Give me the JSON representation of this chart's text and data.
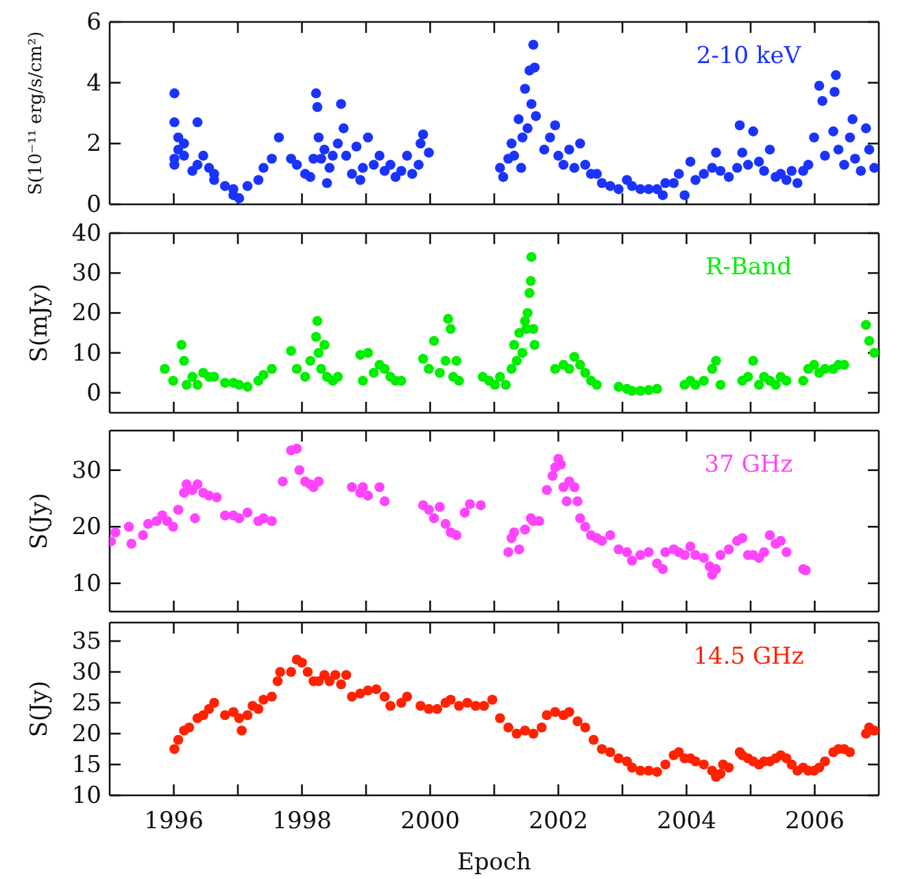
{
  "chart_data": [
    {
      "type": "scatter",
      "ylabel": "S(10⁻¹¹ erg/s/cm²)",
      "xlim": [
        1995,
        2007
      ],
      "ylim": [
        0,
        6
      ],
      "yticks": [
        0,
        2,
        4,
        6
      ],
      "xticks": [
        {
          "value": 1996,
          "label": null
        },
        {
          "value": 1997,
          "label": null
        },
        {
          "value": 1998,
          "label": null
        },
        {
          "value": 1999,
          "label": null
        },
        {
          "value": 2000,
          "label": null
        },
        {
          "value": 2001,
          "label": null
        },
        {
          "value": 2002,
          "label": null
        },
        {
          "value": 2003,
          "label": null
        },
        {
          "value": 2004,
          "label": null
        },
        {
          "value": 2005,
          "label": null
        },
        {
          "value": 2006,
          "label": null
        }
      ],
      "tick_labels": "y",
      "legend": "top right",
      "marker": "circle",
      "series": [
        {
          "name": "2-10 keV",
          "color": "#1a33ff",
          "x": [
            1996.01,
            1996.01,
            1996.01,
            1996.01,
            1996.07,
            1996.07,
            1996.16,
            1996.16,
            1996.29,
            1996.37,
            1996.37,
            1996.46,
            1996.55,
            1996.63,
            1996.63,
            1996.8,
            1996.93,
            1996.93,
            1997.02,
            1997.15,
            1997.32,
            1997.4,
            1997.53,
            1997.64,
            1997.83,
            1997.92,
            1998.05,
            1998.13,
            1998.18,
            1998.22,
            1998.24,
            1998.26,
            1998.3,
            1998.35,
            1998.39,
            1998.43,
            1998.48,
            1998.56,
            1998.61,
            1998.65,
            1998.69,
            1998.78,
            1998.85,
            1998.91,
            1998.95,
            1999.03,
            1999.12,
            1999.21,
            1999.29,
            1999.38,
            1999.46,
            1999.55,
            1999.64,
            1999.72,
            1999.82,
            1999.85,
            1999.89,
            1999.98,
            2001.09,
            2001.14,
            2001.22,
            2001.27,
            2001.31,
            2001.38,
            2001.42,
            2001.44,
            2001.48,
            2001.52,
            2001.55,
            2001.58,
            2001.61,
            2001.63,
            2001.65,
            2001.78,
            2001.87,
            2001.95,
            2002.0,
            2002.08,
            2002.17,
            2002.25,
            2002.34,
            2002.42,
            2002.51,
            2002.6,
            2002.68,
            2002.81,
            2002.94,
            2003.07,
            2003.15,
            2003.28,
            2003.41,
            2003.54,
            2003.63,
            2003.67,
            2003.8,
            2003.88,
            2003.97,
            2004.06,
            2004.14,
            2004.27,
            2004.4,
            2004.46,
            2004.53,
            2004.66,
            2004.79,
            2004.83,
            2004.87,
            2004.96,
            2005.04,
            2005.13,
            2005.21,
            2005.3,
            2005.39,
            2005.47,
            2005.56,
            2005.64,
            2005.73,
            2005.82,
            2005.9,
            2005.99,
            2006.07,
            2006.12,
            2006.16,
            2006.29,
            2006.31,
            2006.33,
            2006.37,
            2006.46,
            2006.55,
            2006.59,
            2006.63,
            2006.72,
            2006.8,
            2006.85,
            2006.93
          ],
          "values": [
            1.3,
            1.5,
            3.65,
            2.7,
            2.2,
            1.8,
            1.6,
            2.0,
            1.1,
            2.7,
            1.3,
            1.6,
            1.2,
            1.0,
            0.8,
            0.6,
            0.5,
            0.3,
            0.2,
            0.6,
            0.8,
            1.2,
            1.5,
            2.2,
            1.5,
            1.3,
            1.0,
            0.9,
            1.5,
            3.65,
            3.2,
            2.2,
            1.5,
            1.8,
            0.7,
            1.2,
            1.6,
            2.0,
            3.3,
            2.5,
            1.6,
            1.0,
            1.9,
            0.8,
            1.2,
            2.2,
            1.3,
            1.6,
            1.1,
            1.3,
            0.9,
            1.1,
            1.6,
            1.0,
            1.3,
            2.0,
            2.3,
            1.7,
            1.2,
            0.9,
            1.5,
            2.0,
            1.6,
            2.8,
            1.2,
            2.2,
            3.8,
            2.5,
            4.4,
            3.3,
            5.25,
            4.5,
            2.9,
            1.8,
            2.2,
            2.6,
            1.6,
            1.3,
            1.8,
            1.2,
            2.0,
            1.3,
            1.0,
            1.0,
            0.7,
            0.6,
            0.5,
            0.8,
            0.6,
            0.5,
            0.5,
            0.5,
            0.3,
            0.7,
            0.7,
            1.0,
            0.3,
            1.4,
            0.8,
            1.0,
            1.2,
            1.7,
            1.1,
            0.9,
            1.2,
            2.6,
            1.7,
            1.3,
            2.4,
            1.4,
            1.1,
            1.8,
            0.9,
            1.0,
            0.8,
            1.1,
            0.7,
            1.1,
            1.3,
            2.2,
            3.9,
            3.4,
            1.6,
            2.4,
            3.7,
            4.25,
            1.8,
            1.3,
            2.2,
            2.8,
            1.5,
            1.1,
            2.5,
            1.8,
            1.2
          ]
        }
      ]
    },
    {
      "type": "scatter",
      "ylabel": "S(mJy)",
      "xlim": [
        1995,
        2007
      ],
      "ylim": [
        -5,
        40
      ],
      "yticks": [
        0,
        10,
        20,
        30,
        40
      ],
      "xticks": [
        {
          "value": 1996,
          "label": null
        },
        {
          "value": 1997,
          "label": null
        },
        {
          "value": 1998,
          "label": null
        },
        {
          "value": 1999,
          "label": null
        },
        {
          "value": 2000,
          "label": null
        },
        {
          "value": 2001,
          "label": null
        },
        {
          "value": 2002,
          "label": null
        },
        {
          "value": 2003,
          "label": null
        },
        {
          "value": 2004,
          "label": null
        },
        {
          "value": 2005,
          "label": null
        },
        {
          "value": 2006,
          "label": null
        }
      ],
      "tick_labels": "y",
      "legend": "top right",
      "marker": "circle",
      "series": [
        {
          "name": "R-Band",
          "color": "#00ee00",
          "x": [
            1995.86,
            1995.99,
            1996.12,
            1996.16,
            1996.2,
            1996.29,
            1996.37,
            1996.46,
            1996.55,
            1996.63,
            1996.8,
            1996.93,
            1997.02,
            1997.15,
            1997.32,
            1997.4,
            1997.53,
            1997.83,
            1997.92,
            1998.05,
            1998.13,
            1998.22,
            1998.24,
            1998.26,
            1998.3,
            1998.35,
            1998.39,
            1998.48,
            1998.56,
            1998.91,
            1998.95,
            1999.03,
            1999.12,
            1999.21,
            1999.29,
            1999.38,
            1999.46,
            1999.55,
            1999.89,
            1999.98,
            2000.06,
            2000.15,
            2000.24,
            2000.28,
            2000.32,
            2000.36,
            2000.41,
            2000.45,
            2000.82,
            2000.92,
            2001.01,
            2001.09,
            2001.18,
            2001.27,
            2001.31,
            2001.35,
            2001.39,
            2001.44,
            2001.48,
            2001.5,
            2001.52,
            2001.55,
            2001.57,
            2001.58,
            2001.61,
            2001.63,
            2001.95,
            2002.08,
            2002.17,
            2002.25,
            2002.34,
            2002.42,
            2002.51,
            2002.6,
            2002.94,
            2003.07,
            2003.15,
            2003.28,
            2003.41,
            2003.54,
            2003.97,
            2004.06,
            2004.14,
            2004.27,
            2004.4,
            2004.46,
            2004.53,
            2004.87,
            2004.96,
            2005.04,
            2005.13,
            2005.21,
            2005.3,
            2005.39,
            2005.47,
            2005.56,
            2005.82,
            2005.9,
            2005.99,
            2006.07,
            2006.16,
            2006.29,
            2006.37,
            2006.46,
            2006.8,
            2006.85,
            2006.93
          ],
          "values": [
            6,
            3,
            12,
            8,
            2,
            4,
            2,
            5,
            4,
            4,
            2.5,
            2.5,
            2,
            1.5,
            3,
            4.5,
            6,
            10.5,
            6,
            4,
            8,
            14,
            18,
            10,
            6,
            12,
            4,
            3,
            4,
            9.5,
            3,
            10,
            5,
            7,
            6,
            4,
            3,
            3,
            8.5,
            6,
            13,
            5,
            8,
            18.5,
            16,
            4,
            8,
            3,
            4,
            3,
            2,
            4,
            2,
            6,
            12,
            8,
            15,
            10,
            18,
            16,
            20,
            25,
            28,
            34,
            16,
            12,
            6,
            7,
            6,
            9,
            7,
            5,
            3,
            2,
            1.5,
            1,
            0.5,
            0.5,
            0.7,
            1,
            2,
            3,
            2,
            3,
            6,
            8,
            2,
            3,
            4,
            8,
            2,
            4,
            3,
            2,
            4,
            3,
            3,
            6,
            7,
            5,
            6,
            6,
            7,
            7,
            17,
            13,
            10
          ]
        }
      ]
    },
    {
      "type": "scatter",
      "ylabel": "S(Jy)",
      "xlim": [
        1995,
        2007
      ],
      "ylim": [
        5,
        37
      ],
      "yticks": [
        10,
        20,
        30
      ],
      "xticks": [
        {
          "value": 1996,
          "label": null
        },
        {
          "value": 1997,
          "label": null
        },
        {
          "value": 1998,
          "label": null
        },
        {
          "value": 1999,
          "label": null
        },
        {
          "value": 2000,
          "label": null
        },
        {
          "value": 2001,
          "label": null
        },
        {
          "value": 2002,
          "label": null
        },
        {
          "value": 2003,
          "label": null
        },
        {
          "value": 2004,
          "label": null
        },
        {
          "value": 2005,
          "label": null
        },
        {
          "value": 2006,
          "label": null
        }
      ],
      "tick_labels": "y",
      "legend": "top right",
      "marker": "circle",
      "series": [
        {
          "name": "37 GHz",
          "color": "#ff44ff",
          "x": [
            1995.02,
            1995.09,
            1995.3,
            1995.34,
            1995.52,
            1995.6,
            1995.73,
            1995.82,
            1995.9,
            1995.99,
            1996.07,
            1996.16,
            1996.2,
            1996.29,
            1996.33,
            1996.37,
            1996.46,
            1996.55,
            1996.67,
            1996.8,
            1996.93,
            1997.02,
            1997.15,
            1997.32,
            1997.4,
            1997.53,
            1997.7,
            1997.83,
            1997.92,
            1997.96,
            1998.05,
            1998.13,
            1998.18,
            1998.26,
            1998.78,
            1998.91,
            1998.95,
            1999.03,
            1999.21,
            1999.29,
            1999.89,
            1999.98,
            2000.06,
            2000.15,
            2000.24,
            2000.32,
            2000.41,
            2000.54,
            2000.62,
            2000.79,
            2001.22,
            2001.27,
            2001.31,
            2001.39,
            2001.48,
            2001.57,
            2001.61,
            2001.7,
            2001.82,
            2001.91,
            2001.95,
            2002.0,
            2002.04,
            2002.08,
            2002.13,
            2002.17,
            2002.25,
            2002.3,
            2002.34,
            2002.42,
            2002.51,
            2002.6,
            2002.68,
            2002.81,
            2002.94,
            2003.07,
            2003.15,
            2003.28,
            2003.41,
            2003.54,
            2003.63,
            2003.67,
            2003.8,
            2003.88,
            2003.97,
            2004.06,
            2004.14,
            2004.27,
            2004.36,
            2004.4,
            2004.46,
            2004.53,
            2004.66,
            2004.79,
            2004.87,
            2004.96,
            2005.04,
            2005.13,
            2005.21,
            2005.3,
            2005.39,
            2005.47,
            2005.56,
            2005.82,
            2005.86
          ],
          "values": [
            17.4,
            19,
            20,
            17,
            18.5,
            20.5,
            21,
            22,
            21,
            20,
            23,
            26,
            27.5,
            26.5,
            21.5,
            27.5,
            26,
            25.5,
            25.2,
            22,
            22,
            21.5,
            22.5,
            21,
            21.5,
            21,
            28,
            33.5,
            33.8,
            30,
            28,
            27.5,
            27,
            28,
            27,
            26,
            27,
            25.5,
            27,
            24.5,
            23.8,
            23,
            21.5,
            23.5,
            20.5,
            19,
            18.5,
            22.5,
            24,
            23.8,
            15.5,
            18,
            19,
            16,
            19.5,
            21.5,
            21,
            21,
            26.5,
            29,
            30.5,
            32,
            31,
            27,
            24.5,
            28,
            27,
            24.5,
            21.5,
            20,
            18.5,
            18,
            17.5,
            18.5,
            16,
            15.5,
            14,
            15,
            15.5,
            13.5,
            12.5,
            15.5,
            16,
            15.5,
            15,
            16.5,
            15,
            14.5,
            13,
            11.5,
            12.5,
            15,
            16,
            17.5,
            18,
            15,
            15,
            14.5,
            15.5,
            18.5,
            17,
            17.5,
            15.5,
            12.5,
            12.3
          ]
        }
      ]
    },
    {
      "type": "scatter",
      "ylabel": "S(Jy)",
      "xlabel": "Epoch",
      "xlim": [
        1995,
        2007
      ],
      "ylim": [
        10,
        38
      ],
      "yticks": [
        10,
        15,
        20,
        25,
        30,
        35
      ],
      "xticks": [
        {
          "value": 1996,
          "label": "1996"
        },
        {
          "value": 1997,
          "label": null
        },
        {
          "value": 1998,
          "label": "1998"
        },
        {
          "value": 1999,
          "label": null
        },
        {
          "value": 2000,
          "label": "2000"
        },
        {
          "value": 2001,
          "label": null
        },
        {
          "value": 2002,
          "label": "2002"
        },
        {
          "value": 2003,
          "label": null
        },
        {
          "value": 2004,
          "label": "2004"
        },
        {
          "value": 2005,
          "label": null
        },
        {
          "value": 2006,
          "label": "2006"
        }
      ],
      "legend": "top right",
      "marker": "circle",
      "series": [
        {
          "name": "14.5 GHz",
          "color": "#ff2200",
          "x": [
            1996.01,
            1996.07,
            1996.16,
            1996.24,
            1996.37,
            1996.46,
            1996.55,
            1996.63,
            1996.8,
            1996.93,
            1997.02,
            1997.06,
            1997.15,
            1997.23,
            1997.32,
            1997.4,
            1997.53,
            1997.62,
            1997.66,
            1997.83,
            1997.92,
            1998.0,
            1998.09,
            1998.18,
            1998.26,
            1998.35,
            1998.43,
            1998.52,
            1998.61,
            1998.69,
            1998.78,
            1998.91,
            1999.03,
            1999.16,
            1999.29,
            1999.38,
            1999.55,
            1999.64,
            1999.85,
            1999.98,
            2000.11,
            2000.24,
            2000.32,
            2000.45,
            2000.58,
            2000.71,
            2000.84,
            2000.97,
            2001.09,
            2001.22,
            2001.35,
            2001.48,
            2001.61,
            2001.74,
            2001.82,
            2001.95,
            2002.08,
            2002.17,
            2002.3,
            2002.42,
            2002.55,
            2002.68,
            2002.81,
            2002.94,
            2003.07,
            2003.15,
            2003.28,
            2003.41,
            2003.54,
            2003.67,
            2003.8,
            2003.88,
            2003.97,
            2004.06,
            2004.14,
            2004.27,
            2004.4,
            2004.46,
            2004.53,
            2004.57,
            2004.66,
            2004.83,
            2004.87,
            2004.96,
            2005.04,
            2005.13,
            2005.21,
            2005.3,
            2005.39,
            2005.47,
            2005.56,
            2005.64,
            2005.73,
            2005.82,
            2005.9,
            2005.99,
            2006.07,
            2006.16,
            2006.29,
            2006.37,
            2006.46,
            2006.55,
            2006.8,
            2006.85,
            2006.93
          ],
          "values": [
            17.5,
            19,
            20.5,
            21,
            22.5,
            23,
            24,
            25,
            23,
            23.5,
            22.5,
            20.5,
            23,
            24.5,
            24,
            25.5,
            26,
            28.5,
            30,
            30,
            32,
            31.5,
            30,
            28.5,
            28.5,
            29.5,
            28.5,
            29.5,
            28,
            29.5,
            26,
            26.5,
            27,
            27.2,
            26,
            24.5,
            25,
            26,
            24.5,
            24,
            24,
            25,
            25.5,
            24.5,
            25,
            24.5,
            24.5,
            25.5,
            22.5,
            21,
            20,
            20.5,
            20,
            21,
            23,
            23.5,
            23,
            23.5,
            22,
            21,
            19,
            17.5,
            17,
            16,
            15.5,
            14.5,
            14,
            14,
            13.8,
            15,
            16.5,
            17,
            16,
            16,
            15.5,
            15,
            14,
            13,
            13.5,
            15,
            14.5,
            17,
            16.5,
            16,
            15.5,
            15,
            15.5,
            15.5,
            16,
            16.5,
            16,
            15,
            14,
            14.5,
            14,
            14,
            14.5,
            15.5,
            17,
            17.5,
            17.5,
            17,
            20,
            21,
            20.5
          ]
        }
      ]
    }
  ]
}
